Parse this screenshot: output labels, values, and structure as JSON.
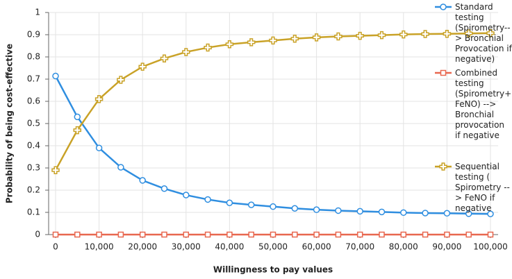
{
  "chart_data": {
    "type": "line",
    "x_label": "Willingness to pay values",
    "y_label": "Probability of being cost-effective",
    "x": [
      0,
      5000,
      10000,
      15000,
      20000,
      25000,
      30000,
      35000,
      40000,
      45000,
      50000,
      55000,
      60000,
      65000,
      70000,
      75000,
      80000,
      85000,
      90000,
      95000,
      100000
    ],
    "series": [
      {
        "name": "Standard testing (Spirometry--> Bronchial Provocation if negative)",
        "color": "#2f8ee0",
        "marker": "circle",
        "values": [
          0.714,
          0.53,
          0.39,
          0.303,
          0.244,
          0.207,
          0.178,
          0.158,
          0.143,
          0.134,
          0.126,
          0.118,
          0.112,
          0.108,
          0.105,
          0.102,
          0.099,
          0.097,
          0.096,
          0.094,
          0.093
        ]
      },
      {
        "name": "Combined testing (Spirometry+ FeNO) --> Bronchial provocation if negative",
        "color": "#e8674f",
        "marker": "square",
        "values": [
          0,
          0,
          0,
          0,
          0,
          0,
          0,
          0,
          0,
          0,
          0,
          0,
          0,
          0,
          0,
          0,
          0,
          0,
          0,
          0,
          0
        ]
      },
      {
        "name": "Sequential testing ( Spirometry --> FeNO if negative",
        "color": "#c9a227",
        "marker": "plus",
        "values": [
          0.29,
          0.47,
          0.61,
          0.697,
          0.756,
          0.793,
          0.822,
          0.842,
          0.857,
          0.866,
          0.874,
          0.882,
          0.888,
          0.892,
          0.895,
          0.898,
          0.901,
          0.903,
          0.904,
          0.906,
          0.907
        ]
      }
    ],
    "xlim": [
      0,
      100000
    ],
    "xticks": [
      0,
      {
        "value": 10000,
        "label": "10,000"
      },
      {
        "value": 20000,
        "label": "20,000"
      },
      {
        "value": 30000,
        "label": "30,000"
      },
      {
        "value": 40000,
        "label": "40,000"
      },
      {
        "value": 50000,
        "label": "50,000"
      },
      {
        "value": 60000,
        "label": "60,000"
      },
      {
        "value": 70000,
        "label": "70,000"
      },
      {
        "value": 80000,
        "label": "80,000"
      },
      {
        "value": 90000,
        "label": "90,000"
      },
      {
        "value": 100000,
        "label": "100,000"
      }
    ],
    "ylim": [
      0,
      1
    ],
    "yticks": [
      0,
      0.1,
      0.2,
      0.3,
      0.4,
      0.5,
      0.6,
      0.7,
      0.8,
      0.9,
      1
    ],
    "grid": true,
    "legend": "right"
  }
}
